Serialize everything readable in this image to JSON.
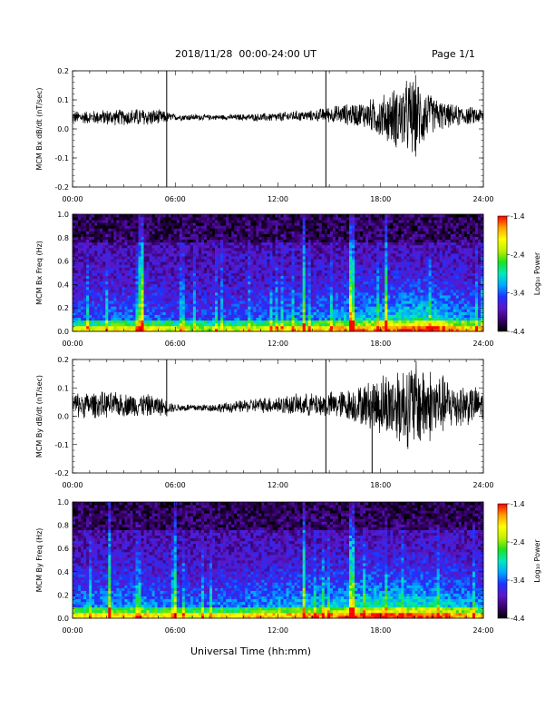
{
  "header": {
    "title": "2018/11/28  00:00-24:00 UT",
    "page": "Page 1/1"
  },
  "x_axis_title": "Universal Time (hh:mm)",
  "colorbar": {
    "label": "Log₁₀ Power",
    "ticks": [
      "-1.4",
      "-2.4",
      "-3.4",
      "-4.4"
    ],
    "tick_values": [
      -1.4,
      -2.4,
      -3.4,
      -4.4
    ],
    "range": [
      -4.4,
      -1.4
    ],
    "colormap": [
      "#000000",
      "#3a006e",
      "#5a18c8",
      "#2030ff",
      "#00a8ff",
      "#00e8c0",
      "#20e020",
      "#c0f000",
      "#ffff00",
      "#ffa000",
      "#ff0000"
    ]
  },
  "chart_data": [
    {
      "type": "line",
      "panel": "bx-waveform",
      "ylabel": "MCM Bx dB/dt (nT/sec)",
      "xlim": [
        0,
        24
      ],
      "ylim": [
        -0.2,
        0.2
      ],
      "x_tick_labels": [
        "00:00",
        "06:00",
        "12:00",
        "18:00",
        "24:00"
      ],
      "y_tick_labels": [
        "0.2",
        "0.1",
        "0.0",
        "-0.1",
        "-0.2"
      ],
      "y_tick_values": [
        0.2,
        0.1,
        0.0,
        -0.1,
        -0.2
      ],
      "x_hours": [
        0,
        1,
        2,
        3,
        4,
        5,
        6,
        7,
        8,
        9,
        10,
        11,
        12,
        13,
        14,
        15,
        16,
        17,
        18,
        19,
        20,
        21,
        22,
        23,
        24
      ],
      "y_center": [
        0.04,
        0.04,
        0.04,
        0.04,
        0.04,
        0.04,
        0.04,
        0.04,
        0.04,
        0.04,
        0.04,
        0.04,
        0.04,
        0.045,
        0.045,
        0.05,
        0.05,
        0.05,
        0.04,
        0.04,
        0.04,
        0.05,
        0.045,
        0.045,
        0.045
      ],
      "y_amplitude": [
        0.025,
        0.025,
        0.03,
        0.03,
        0.035,
        0.03,
        0.012,
        0.012,
        0.01,
        0.01,
        0.012,
        0.015,
        0.018,
        0.02,
        0.02,
        0.03,
        0.04,
        0.05,
        0.08,
        0.12,
        0.16,
        0.07,
        0.045,
        0.035,
        0.03
      ],
      "spikes": [
        {
          "x": 5.5,
          "ymin": -0.2,
          "ymax": 0.2
        },
        {
          "x": 14.8,
          "ymin": -0.2,
          "ymax": 0.2
        }
      ]
    },
    {
      "type": "heatmap",
      "panel": "bx-spectrogram",
      "ylabel": "MCM Bx Freq (Hz)",
      "xlim": [
        0,
        24
      ],
      "ylim": [
        0.0,
        1.0
      ],
      "x_tick_labels": [
        "00:00",
        "06:00",
        "12:00",
        "18:00",
        "24:00"
      ],
      "y_tick_labels": [
        "1.0",
        "0.8",
        "0.6",
        "0.4",
        "0.2",
        "0.0"
      ],
      "y_tick_values": [
        1.0,
        0.8,
        0.6,
        0.4,
        0.2,
        0.0
      ],
      "value_range": [
        -4.4,
        -1.4
      ],
      "hourly_activity": [
        0.35,
        0.35,
        0.4,
        0.4,
        0.42,
        0.4,
        0.3,
        0.3,
        0.3,
        0.32,
        0.35,
        0.38,
        0.4,
        0.45,
        0.45,
        0.5,
        0.55,
        0.6,
        0.62,
        0.68,
        0.72,
        0.75,
        0.62,
        0.5,
        0.45
      ],
      "bright_lines_hours": [
        4.0,
        13.5,
        16.3,
        18.3
      ]
    },
    {
      "type": "line",
      "panel": "by-waveform",
      "ylabel": "MCM By dB/dt (nT/sec)",
      "xlim": [
        0,
        24
      ],
      "ylim": [
        -0.2,
        0.2
      ],
      "x_tick_labels": [
        "00:00",
        "06:00",
        "12:00",
        "18:00",
        "24:00"
      ],
      "y_tick_labels": [
        "0.2",
        "0.1",
        "0.0",
        "-0.1",
        "-0.2"
      ],
      "y_tick_values": [
        0.2,
        0.1,
        0.0,
        -0.1,
        -0.2
      ],
      "x_hours": [
        0,
        1,
        2,
        3,
        4,
        5,
        6,
        7,
        8,
        9,
        10,
        11,
        12,
        13,
        14,
        15,
        16,
        17,
        18,
        19,
        20,
        21,
        22,
        23,
        24
      ],
      "y_center": [
        0.04,
        0.04,
        0.04,
        0.04,
        0.04,
        0.035,
        0.03,
        0.03,
        0.03,
        0.03,
        0.035,
        0.04,
        0.04,
        0.04,
        0.04,
        0.04,
        0.04,
        0.04,
        0.04,
        0.04,
        0.04,
        0.04,
        0.04,
        0.04,
        0.04
      ],
      "y_amplitude": [
        0.05,
        0.05,
        0.05,
        0.045,
        0.045,
        0.04,
        0.015,
        0.015,
        0.015,
        0.02,
        0.025,
        0.03,
        0.035,
        0.04,
        0.045,
        0.05,
        0.06,
        0.08,
        0.12,
        0.15,
        0.18,
        0.14,
        0.1,
        0.08,
        0.06
      ],
      "spikes": [
        {
          "x": 5.5,
          "ymin": 0.0,
          "ymax": 0.2
        },
        {
          "x": 14.8,
          "ymin": -0.2,
          "ymax": 0.2
        },
        {
          "x": 17.5,
          "ymin": -0.2,
          "ymax": 0.05
        }
      ]
    },
    {
      "type": "heatmap",
      "panel": "by-spectrogram",
      "ylabel": "MCM By Freq (Hz)",
      "xlim": [
        0,
        24
      ],
      "ylim": [
        0.0,
        1.0
      ],
      "x_tick_labels": [
        "00:00",
        "06:00",
        "12:00",
        "18:00",
        "24:00"
      ],
      "y_tick_labels": [
        "1.0",
        "0.8",
        "0.6",
        "0.4",
        "0.2",
        "0.0"
      ],
      "y_tick_values": [
        1.0,
        0.8,
        0.6,
        0.4,
        0.2,
        0.0
      ],
      "value_range": [
        -4.4,
        -1.4
      ],
      "hourly_activity": [
        0.45,
        0.45,
        0.48,
        0.5,
        0.5,
        0.45,
        0.38,
        0.38,
        0.4,
        0.42,
        0.45,
        0.5,
        0.52,
        0.55,
        0.58,
        0.6,
        0.65,
        0.72,
        0.75,
        0.72,
        0.7,
        0.72,
        0.6,
        0.55,
        0.5
      ],
      "bright_lines_hours": [
        2.2,
        6.0,
        13.5,
        16.3
      ]
    }
  ]
}
